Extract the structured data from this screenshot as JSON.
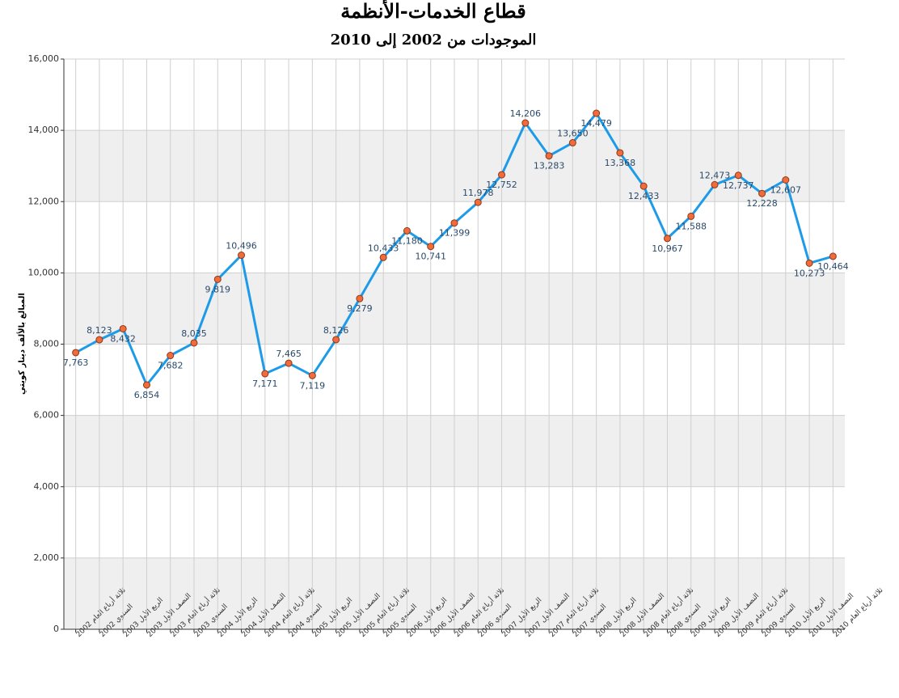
{
  "chart_data": {
    "type": "line",
    "title": "قطاع الخدمات-الأنظمة",
    "subtitle": "الموجودات من 2002 إلى 2010",
    "y_label": "المبالغ بالألف دينار كويتي",
    "categories": [
      "ثلاثة أرباع العام 2002",
      "السنوي 2002",
      "الربع الأول 2003",
      "النصف الأول 2003",
      "ثلاثة أرباع العام 2003",
      "السنوي 2003",
      "الربع الأول 2004",
      "النصف الأول 2004",
      "ثلاثة أرباع العام 2004",
      "السنوي 2004",
      "الربع الأول 2005",
      "النصف الأول 2005",
      "ثلاثة أرباع العام 2005",
      "السنوي 2005",
      "الربع الأول 2006",
      "النصف الأول 2006",
      "ثلاثة أرباع العام 2006",
      "السنوي 2006",
      "الربع الأول 2007",
      "النصف الأول 2007",
      "ثلاثة أرباع العام 2007",
      "السنوي 2007",
      "الربع الأول 2008",
      "النصف الأول 2008",
      "ثلاثة أرباع العام 2008",
      "السنوي 2008",
      "الربع الأول 2009",
      "النصف الأول 2009",
      "ثلاثة أرباع العام 2009",
      "السنوي 2009",
      "الربع الأول 2010",
      "النصف الأول 2010",
      "ثلاثة أرباع العام 2010"
    ],
    "values": [
      7763,
      8123,
      8432,
      6854,
      7682,
      8035,
      9819,
      10496,
      7171,
      7465,
      7119,
      8126,
      9279,
      10433,
      11180,
      10741,
      11399,
      11978,
      12752,
      14206,
      13283,
      13650,
      14479,
      13368,
      12433,
      10967,
      11588,
      12473,
      12737,
      12228,
      12607,
      10273,
      10464
    ],
    "value_labels": [
      "7,763",
      "8,123",
      "8,432",
      "6,854",
      "7,682",
      "8,035",
      "9,819",
      "10,496",
      "7,171",
      "7,465",
      "7,119",
      "8,126",
      "9,279",
      "10,433",
      "11,180",
      "10,741",
      "11,399",
      "11,978",
      "12,752",
      "14,206",
      "13,283",
      "13,650",
      "14,479",
      "13,368",
      "12,433",
      "10,967",
      "11,588",
      "12,473",
      "12,737",
      "12,228",
      "12,607",
      "10,273",
      "10,464"
    ],
    "color": "#1e9be8",
    "marker_color": "#f26b3a",
    "ylim": [
      0,
      16000
    ],
    "yticks": [
      0,
      {
        "value": 2000,
        "label": "2,000"
      },
      {
        "value": 4000,
        "label": "4,000"
      },
      {
        "value": 6000,
        "label": "6,000"
      },
      {
        "value": 8000,
        "label": "8,000"
      },
      {
        "value": 10000,
        "label": "10,000"
      },
      {
        "value": 12000,
        "label": "12,000"
      },
      {
        "value": 14000,
        "label": "14,000"
      },
      {
        "value": 16000,
        "label": "16,000"
      }
    ],
    "grid": true
  }
}
